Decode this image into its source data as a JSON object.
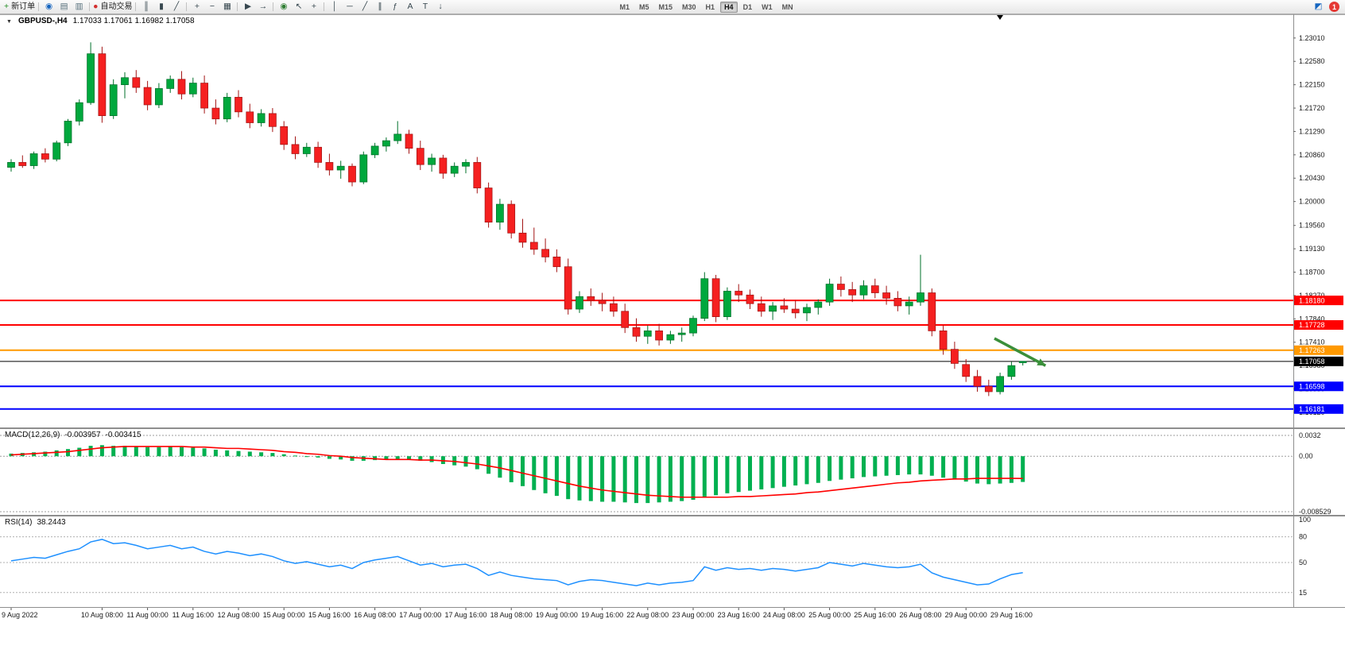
{
  "toolbar": {
    "items": [
      {
        "name": "new-order-button",
        "icon": "new-order-icon",
        "glyph": "+",
        "color": "#1b8a1b",
        "label": "新订单"
      },
      {
        "type": "sep"
      },
      {
        "name": "community-button",
        "icon": "community-icon",
        "glyph": "◉",
        "color": "#1565c0"
      },
      {
        "name": "market-watch-button",
        "icon": "market-watch-icon",
        "glyph": "▤",
        "color": "#546e7a"
      },
      {
        "name": "data-window-button",
        "icon": "data-window-icon",
        "glyph": "▥",
        "color": "#546e7a"
      },
      {
        "type": "sep"
      },
      {
        "name": "autotrading-button",
        "icon": "autotrading-icon",
        "glyph": "●",
        "color": "#d32f2f",
        "label": "自动交易"
      },
      {
        "type": "sep"
      },
      {
        "name": "bar-chart-button",
        "icon": "bar-chart-icon",
        "glyph": "║",
        "color": "#37474f"
      },
      {
        "name": "candlestick-chart-button",
        "icon": "candlestick-chart-icon",
        "glyph": "▮",
        "color": "#37474f"
      },
      {
        "name": "line-chart-button",
        "icon": "line-chart-icon",
        "glyph": "╱",
        "color": "#37474f"
      },
      {
        "type": "sep"
      },
      {
        "name": "zoom-in-button",
        "icon": "zoom-in-icon",
        "glyph": "+",
        "color": "#37474f"
      },
      {
        "name": "zoom-out-button",
        "icon": "zoom-out-icon",
        "glyph": "−",
        "color": "#37474f"
      },
      {
        "name": "tile-windows-button",
        "icon": "tile-windows-icon",
        "glyph": "▦",
        "color": "#37474f"
      },
      {
        "type": "sep"
      },
      {
        "name": "auto-scroll-button",
        "icon": "auto-scroll-icon",
        "glyph": "▶",
        "color": "#37474f"
      },
      {
        "name": "shift-end-button",
        "icon": "shift-end-icon",
        "glyph": "→",
        "color": "#37474f"
      },
      {
        "type": "sep"
      },
      {
        "name": "indicators-button",
        "icon": "indicators-icon",
        "glyph": "◉",
        "color": "#2e7d32"
      },
      {
        "name": "cursor-button",
        "icon": "cursor-icon",
        "glyph": "↖",
        "color": "#37474f"
      },
      {
        "name": "crosshair-button",
        "icon": "crosshair-icon",
        "glyph": "+",
        "color": "#37474f"
      },
      {
        "type": "sep"
      },
      {
        "name": "vertical-line-button",
        "icon": "vertical-line-icon",
        "glyph": "│",
        "color": "#37474f"
      },
      {
        "name": "horizontal-line-button",
        "icon": "horizontal-line-icon",
        "glyph": "─",
        "color": "#37474f"
      },
      {
        "name": "trendline-button",
        "icon": "trendline-icon",
        "glyph": "╱",
        "color": "#37474f"
      },
      {
        "name": "channel-button",
        "icon": "channel-icon",
        "glyph": "∥",
        "color": "#37474f"
      },
      {
        "name": "fibonacci-button",
        "icon": "fibonacci-icon",
        "glyph": "ƒ",
        "color": "#37474f"
      },
      {
        "name": "text-button",
        "icon": "text-icon",
        "glyph": "A",
        "color": "#37474f"
      },
      {
        "name": "label-button",
        "icon": "label-icon",
        "glyph": "T",
        "color": "#37474f"
      },
      {
        "name": "arrows-button",
        "icon": "arrows-icon",
        "glyph": "↓",
        "color": "#37474f"
      }
    ],
    "timeframes": [
      "M1",
      "M5",
      "M15",
      "M30",
      "H1",
      "H4",
      "D1",
      "W1",
      "MN"
    ],
    "active_timeframe": "H4",
    "right_items": [
      {
        "name": "chat-button",
        "icon": "chat-icon",
        "glyph": "◩",
        "color": "#1565c0"
      },
      {
        "name": "notifications-badge",
        "label": "1"
      }
    ]
  },
  "chart": {
    "collapse_glyph": "▼",
    "symbol_period": "GBPUSD-,H4",
    "ohlc": "1.17033 1.17061 1.16982 1.17058"
  },
  "macd": {
    "label": "MACD(12,26,9)",
    "main_value": "-0.003957",
    "signal_value": "-0.003415"
  },
  "rsi": {
    "label": "RSI(14)",
    "value": "38.2443"
  },
  "chart_data": {
    "type": "candlestick",
    "symbol": "GBPUSD-",
    "period": "H4",
    "y_ticks": [
      "1.23010",
      "1.22580",
      "1.22150",
      "1.21720",
      "1.21290",
      "1.20860",
      "1.20430",
      "1.20000",
      "1.19560",
      "1.19130",
      "1.18700",
      "1.18270",
      "1.17840",
      "1.17410",
      "1.16980",
      "1.16550",
      "1.16120"
    ],
    "levels": [
      {
        "price": 1.1818,
        "label": "1.18180",
        "color": "#ff0000",
        "width": 2
      },
      {
        "price": 1.17728,
        "label": "1.17728",
        "color": "#ff0000",
        "width": 2
      },
      {
        "price": 1.17263,
        "label": "1.17263",
        "color": "#ff9900",
        "width": 2
      },
      {
        "price": 1.17058,
        "label": "1.17058",
        "color": "#000000",
        "width": 1
      },
      {
        "price": 1.16598,
        "label": "1.16598",
        "color": "#0000ff",
        "width": 2
      },
      {
        "price": 1.16181,
        "label": "1.16181",
        "color": "#0000ff",
        "width": 2
      }
    ],
    "candles": [
      [
        1.2063,
        1.2078,
        1.2055,
        1.2072
      ],
      [
        1.2072,
        1.2085,
        1.2062,
        1.2066
      ],
      [
        1.2066,
        1.2092,
        1.206,
        1.2088
      ],
      [
        1.2088,
        1.2098,
        1.2072,
        1.2078
      ],
      [
        1.2078,
        1.2112,
        1.2074,
        1.2108
      ],
      [
        1.2108,
        1.2152,
        1.2102,
        1.2148
      ],
      [
        1.2148,
        1.2188,
        1.214,
        1.2182
      ],
      [
        1.2182,
        1.2293,
        1.2178,
        1.2272
      ],
      [
        1.2272,
        1.2285,
        1.2145,
        1.2158
      ],
      [
        1.2158,
        1.2225,
        1.2152,
        1.2215
      ],
      [
        1.2215,
        1.2238,
        1.219,
        1.2228
      ],
      [
        1.2228,
        1.2242,
        1.22,
        1.221
      ],
      [
        1.221,
        1.2222,
        1.2168,
        1.2178
      ],
      [
        1.2178,
        1.2218,
        1.2172,
        1.2208
      ],
      [
        1.2208,
        1.2232,
        1.22,
        1.2225
      ],
      [
        1.2225,
        1.224,
        1.2188,
        1.2198
      ],
      [
        1.2198,
        1.2228,
        1.2192,
        1.2218
      ],
      [
        1.2218,
        1.2232,
        1.2162,
        1.2172
      ],
      [
        1.2172,
        1.2188,
        1.2142,
        1.2152
      ],
      [
        1.2152,
        1.22,
        1.2146,
        1.2192
      ],
      [
        1.2192,
        1.2205,
        1.2155,
        1.2165
      ],
      [
        1.2165,
        1.218,
        1.2135,
        1.2145
      ],
      [
        1.2145,
        1.217,
        1.2138,
        1.2162
      ],
      [
        1.2162,
        1.2172,
        1.2128,
        1.2138
      ],
      [
        1.2138,
        1.2148,
        1.2095,
        1.2105
      ],
      [
        1.2105,
        1.212,
        1.2078,
        1.2088
      ],
      [
        1.2088,
        1.2108,
        1.2082,
        1.21
      ],
      [
        1.21,
        1.211,
        1.2062,
        1.2072
      ],
      [
        1.2072,
        1.2088,
        1.2048,
        1.2058
      ],
      [
        1.2058,
        1.2075,
        1.2042,
        1.2065
      ],
      [
        1.2065,
        1.207,
        1.2028,
        1.2036
      ],
      [
        1.2036,
        1.2092,
        1.2032,
        1.2086
      ],
      [
        1.2086,
        1.2108,
        1.208,
        1.2102
      ],
      [
        1.2102,
        1.2118,
        1.2092,
        1.2112
      ],
      [
        1.2112,
        1.2148,
        1.2106,
        1.2124
      ],
      [
        1.2124,
        1.2132,
        1.2088,
        1.2098
      ],
      [
        1.2098,
        1.2112,
        1.2058,
        1.2068
      ],
      [
        1.2068,
        1.2088,
        1.2055,
        1.208
      ],
      [
        1.208,
        1.2086,
        1.2042,
        1.2052
      ],
      [
        1.2052,
        1.2072,
        1.2045,
        1.2065
      ],
      [
        1.2065,
        1.2078,
        1.2052,
        1.2072
      ],
      [
        1.2072,
        1.2082,
        1.2015,
        1.2025
      ],
      [
        1.2025,
        1.2035,
        1.1952,
        1.1962
      ],
      [
        1.1962,
        1.2005,
        1.1948,
        1.1995
      ],
      [
        1.1995,
        1.2002,
        1.1932,
        1.1942
      ],
      [
        1.1942,
        1.1968,
        1.1915,
        1.1925
      ],
      [
        1.1925,
        1.1952,
        1.1902,
        1.1912
      ],
      [
        1.1912,
        1.1932,
        1.1888,
        1.1898
      ],
      [
        1.1898,
        1.1912,
        1.187,
        1.188
      ],
      [
        1.188,
        1.1895,
        1.1792,
        1.1802
      ],
      [
        1.1802,
        1.1835,
        1.1795,
        1.1825
      ],
      [
        1.1825,
        1.184,
        1.1808,
        1.1818
      ],
      [
        1.1818,
        1.1832,
        1.1798,
        1.1812
      ],
      [
        1.1812,
        1.1825,
        1.1788,
        1.1798
      ],
      [
        1.1798,
        1.1812,
        1.1758,
        1.1768
      ],
      [
        1.1768,
        1.1785,
        1.1742,
        1.1752
      ],
      [
        1.1752,
        1.1772,
        1.1738,
        1.1762
      ],
      [
        1.1762,
        1.1775,
        1.1735,
        1.1745
      ],
      [
        1.1745,
        1.1762,
        1.1738,
        1.1755
      ],
      [
        1.1755,
        1.1768,
        1.1742,
        1.1758
      ],
      [
        1.1758,
        1.179,
        1.1752,
        1.1785
      ],
      [
        1.1785,
        1.187,
        1.178,
        1.1858
      ],
      [
        1.1858,
        1.1865,
        1.1778,
        1.1788
      ],
      [
        1.1788,
        1.1842,
        1.1782,
        1.1835
      ],
      [
        1.1835,
        1.1848,
        1.1815,
        1.1828
      ],
      [
        1.1828,
        1.1838,
        1.1802,
        1.1812
      ],
      [
        1.1812,
        1.1825,
        1.1788,
        1.1798
      ],
      [
        1.1798,
        1.1815,
        1.1782,
        1.1808
      ],
      [
        1.1808,
        1.1822,
        1.1795,
        1.1802
      ],
      [
        1.1802,
        1.1818,
        1.1785,
        1.1795
      ],
      [
        1.1795,
        1.1812,
        1.178,
        1.1805
      ],
      [
        1.1805,
        1.182,
        1.1792,
        1.1815
      ],
      [
        1.1815,
        1.1858,
        1.1808,
        1.1848
      ],
      [
        1.1848,
        1.1862,
        1.1825,
        1.1838
      ],
      [
        1.1838,
        1.1852,
        1.1815,
        1.1828
      ],
      [
        1.1828,
        1.1855,
        1.182,
        1.1845
      ],
      [
        1.1845,
        1.1858,
        1.1822,
        1.1832
      ],
      [
        1.1832,
        1.1845,
        1.181,
        1.1822
      ],
      [
        1.1822,
        1.1835,
        1.1798,
        1.1808
      ],
      [
        1.1808,
        1.1825,
        1.1792,
        1.1815
      ],
      [
        1.1815,
        1.1902,
        1.1808,
        1.1832
      ],
      [
        1.1832,
        1.184,
        1.1752,
        1.1762
      ],
      [
        1.1762,
        1.1772,
        1.1718,
        1.1728
      ],
      [
        1.1728,
        1.1742,
        1.1692,
        1.1702
      ],
      [
        1.17,
        1.171,
        1.1668,
        1.1678
      ],
      [
        1.1678,
        1.169,
        1.165,
        1.166
      ],
      [
        1.166,
        1.1672,
        1.1642,
        1.165
      ],
      [
        1.165,
        1.1685,
        1.1645,
        1.1678
      ],
      [
        1.1678,
        1.1705,
        1.1672,
        1.1698
      ],
      [
        1.17033,
        1.17061,
        1.16982,
        1.17058
      ]
    ],
    "macd": {
      "scale_max": 0.0032,
      "scale_min": -0.008529,
      "axis_ticks": [
        {
          "v": 0.0032,
          "t": "0.0032"
        },
        {
          "v": 0,
          "t": "0.00"
        },
        {
          "v": -0.008529,
          "t": "-0.008529"
        }
      ],
      "histogram": [
        0.0004,
        0.0005,
        0.0006,
        0.0007,
        0.0009,
        0.0011,
        0.0013,
        0.0016,
        0.0017,
        0.0016,
        0.0016,
        0.0015,
        0.0014,
        0.0014,
        0.0015,
        0.0014,
        0.0013,
        0.0012,
        0.001,
        0.0009,
        0.0008,
        0.0007,
        0.0006,
        0.0005,
        0.0003,
        0.0001,
        0.0,
        -0.0002,
        -0.0004,
        -0.0005,
        -0.0007,
        -0.0007,
        -0.0006,
        -0.0005,
        -0.0004,
        -0.0005,
        -0.0007,
        -0.0009,
        -0.0012,
        -0.0014,
        -0.0016,
        -0.002,
        -0.0027,
        -0.0033,
        -0.004,
        -0.0046,
        -0.0052,
        -0.0057,
        -0.0061,
        -0.0066,
        -0.0068,
        -0.0069,
        -0.007,
        -0.007,
        -0.0071,
        -0.0072,
        -0.0072,
        -0.0071,
        -0.007,
        -0.0069,
        -0.0067,
        -0.0062,
        -0.006,
        -0.0057,
        -0.0055,
        -0.0053,
        -0.0051,
        -0.0049,
        -0.0047,
        -0.0045,
        -0.0043,
        -0.0041,
        -0.0038,
        -0.0036,
        -0.0034,
        -0.0032,
        -0.0031,
        -0.003,
        -0.0029,
        -0.0028,
        -0.0028,
        -0.003,
        -0.0033,
        -0.0036,
        -0.0039,
        -0.0042,
        -0.0043,
        -0.0042,
        -0.0041,
        -0.003957
      ],
      "signal": [
        0.0002,
        0.0003,
        0.0004,
        0.0005,
        0.0006,
        0.0007,
        0.0009,
        0.0011,
        0.0013,
        0.0014,
        0.0015,
        0.0015,
        0.0015,
        0.0015,
        0.0015,
        0.0015,
        0.0014,
        0.0014,
        0.0013,
        0.0012,
        0.0012,
        0.0011,
        0.001,
        0.0009,
        0.0007,
        0.0006,
        0.0004,
        0.0003,
        0.0001,
        0.0,
        -0.0002,
        -0.0003,
        -0.0004,
        -0.0005,
        -0.0005,
        -0.0005,
        -0.0006,
        -0.0006,
        -0.0007,
        -0.0008,
        -0.001,
        -0.0012,
        -0.0015,
        -0.0018,
        -0.0022,
        -0.0026,
        -0.003,
        -0.0034,
        -0.0038,
        -0.0042,
        -0.0046,
        -0.0049,
        -0.0052,
        -0.0054,
        -0.0056,
        -0.0058,
        -0.006,
        -0.0061,
        -0.0062,
        -0.0063,
        -0.0063,
        -0.0063,
        -0.0063,
        -0.0063,
        -0.0062,
        -0.0062,
        -0.0061,
        -0.006,
        -0.0059,
        -0.0058,
        -0.0056,
        -0.0055,
        -0.0053,
        -0.0051,
        -0.0049,
        -0.0047,
        -0.0045,
        -0.0043,
        -0.0041,
        -0.004,
        -0.0038,
        -0.0037,
        -0.0036,
        -0.0035,
        -0.0035,
        -0.0034,
        -0.0034,
        -0.0034,
        -0.0034,
        -0.003415
      ]
    },
    "rsi": {
      "scale_max": 100,
      "scale_min": 0,
      "axis_ticks": [
        {
          "v": 100,
          "t": "100"
        },
        {
          "v": 80,
          "t": "80"
        },
        {
          "v": 50,
          "t": "50"
        },
        {
          "v": 15,
          "t": "15"
        }
      ],
      "guide_levels": [
        80,
        50,
        15
      ],
      "values": [
        52,
        54,
        56,
        55,
        59,
        63,
        66,
        74,
        77,
        72,
        73,
        70,
        66,
        68,
        70,
        66,
        68,
        63,
        60,
        63,
        61,
        58,
        60,
        57,
        52,
        49,
        51,
        48,
        45,
        47,
        43,
        50,
        53,
        55,
        57,
        52,
        47,
        49,
        45,
        47,
        48,
        43,
        35,
        39,
        35,
        33,
        31,
        30,
        29,
        24,
        28,
        30,
        29,
        27,
        25,
        23,
        26,
        24,
        26,
        27,
        29,
        45,
        41,
        44,
        42,
        43,
        41,
        43,
        42,
        40,
        42,
        44,
        50,
        48,
        46,
        49,
        47,
        45,
        44,
        45,
        48,
        38,
        33,
        30,
        27,
        24,
        25,
        31,
        36,
        38.24
      ]
    },
    "time_labels": [
      {
        "text": "9 Aug 2022",
        "index": 0
      },
      {
        "text": "10 Aug 08:00",
        "index": 8
      },
      {
        "text": "11 Aug 00:00",
        "index": 12
      },
      {
        "text": "11 Aug 16:00",
        "index": 16
      },
      {
        "text": "12 Aug 08:00",
        "index": 20
      },
      {
        "text": "15 Aug 00:00",
        "index": 24
      },
      {
        "text": "15 Aug 16:00",
        "index": 28
      },
      {
        "text": "16 Aug 08:00",
        "index": 32
      },
      {
        "text": "17 Aug 00:00",
        "index": 36
      },
      {
        "text": "17 Aug 16:00",
        "index": 40
      },
      {
        "text": "18 Aug 08:00",
        "index": 44
      },
      {
        "text": "19 Aug 00:00",
        "index": 48
      },
      {
        "text": "19 Aug 16:00",
        "index": 52
      },
      {
        "text": "22 Aug 08:00",
        "index": 56
      },
      {
        "text": "23 Aug 00:00",
        "index": 60
      },
      {
        "text": "23 Aug 16:00",
        "index": 64
      },
      {
        "text": "24 Aug 08:00",
        "index": 68
      },
      {
        "text": "25 Aug 00:00",
        "index": 72
      },
      {
        "text": "25 Aug 16:00",
        "index": 76
      },
      {
        "text": "26 Aug 08:00",
        "index": 80
      },
      {
        "text": "29 Aug 00:00",
        "index": 84
      },
      {
        "text": "29 Aug 16:00",
        "index": 88
      }
    ],
    "arrow": {
      "from_index": 86.5,
      "from_price": 1.1748,
      "to_index": 91,
      "to_price": 1.1698
    },
    "colors": {
      "bull": "#00a83d",
      "bull_border": "#00702a",
      "bear": "#f52020",
      "bear_border": "#a31515",
      "macd_histogram": "#00b050",
      "macd_signal": "#ff0000",
      "rsi_line": "#1e90ff",
      "arrow": "#3a8f3a",
      "axis_text": "#1a1a1a",
      "separator": "#8e8e8e"
    }
  }
}
